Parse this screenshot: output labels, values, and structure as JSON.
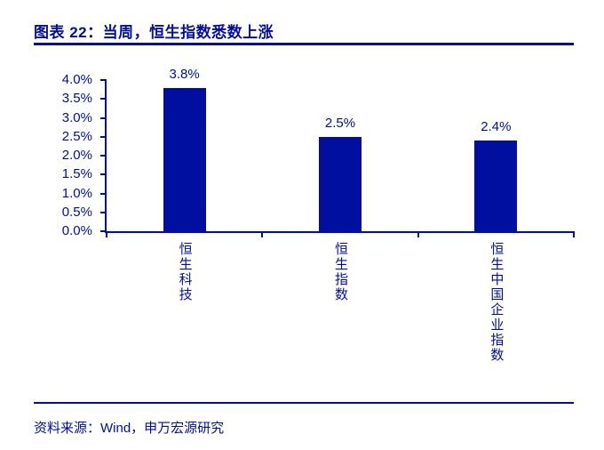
{
  "accent_color": "#000f9f",
  "header": {
    "title": "图表 22：当周，恒生指数悉数上涨"
  },
  "footer": {
    "source": "资料来源：Wind，申万宏源研究"
  },
  "chart_data": {
    "type": "bar",
    "title": "当周，恒生指数悉数上涨",
    "categories": [
      "恒生科技",
      "恒生指数",
      "恒生中国企业指数"
    ],
    "values": [
      3.8,
      2.5,
      2.4
    ],
    "value_labels": [
      "3.8%",
      "2.5%",
      "2.4%"
    ],
    "xlabel": "",
    "ylabel": "",
    "ylim": [
      0,
      4.0
    ],
    "ytick_step": 0.5,
    "ytick_labels": [
      "0.0%",
      "0.5%",
      "1.0%",
      "1.5%",
      "2.0%",
      "2.5%",
      "3.0%",
      "3.5%",
      "4.0%"
    ],
    "bar_color": "#000f9f",
    "grid": false,
    "legend_position": "none"
  }
}
